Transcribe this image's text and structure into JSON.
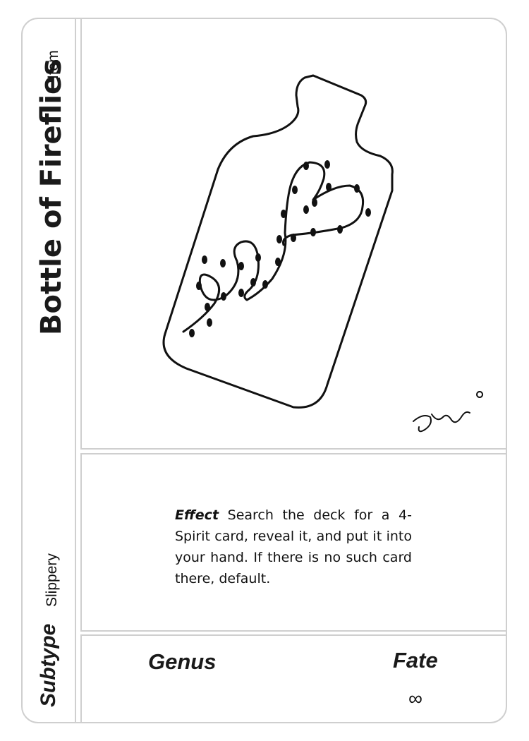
{
  "card": {
    "title": "Bottle of Fireflies",
    "type": "Item",
    "subtype_label": "Subtype",
    "subtype_value": "Slippery",
    "effect_label": "Effect",
    "effect_text": "Search the deck for a 4-Spirit card, reveal it, and put it into your hand. If there is no such card there, default.",
    "genus_label": "Genus",
    "fate_label": "Fate",
    "fate_value": "∞"
  },
  "art": {
    "subject": "bottle-with-fireflies-illustration",
    "signature": "artist-signature"
  }
}
